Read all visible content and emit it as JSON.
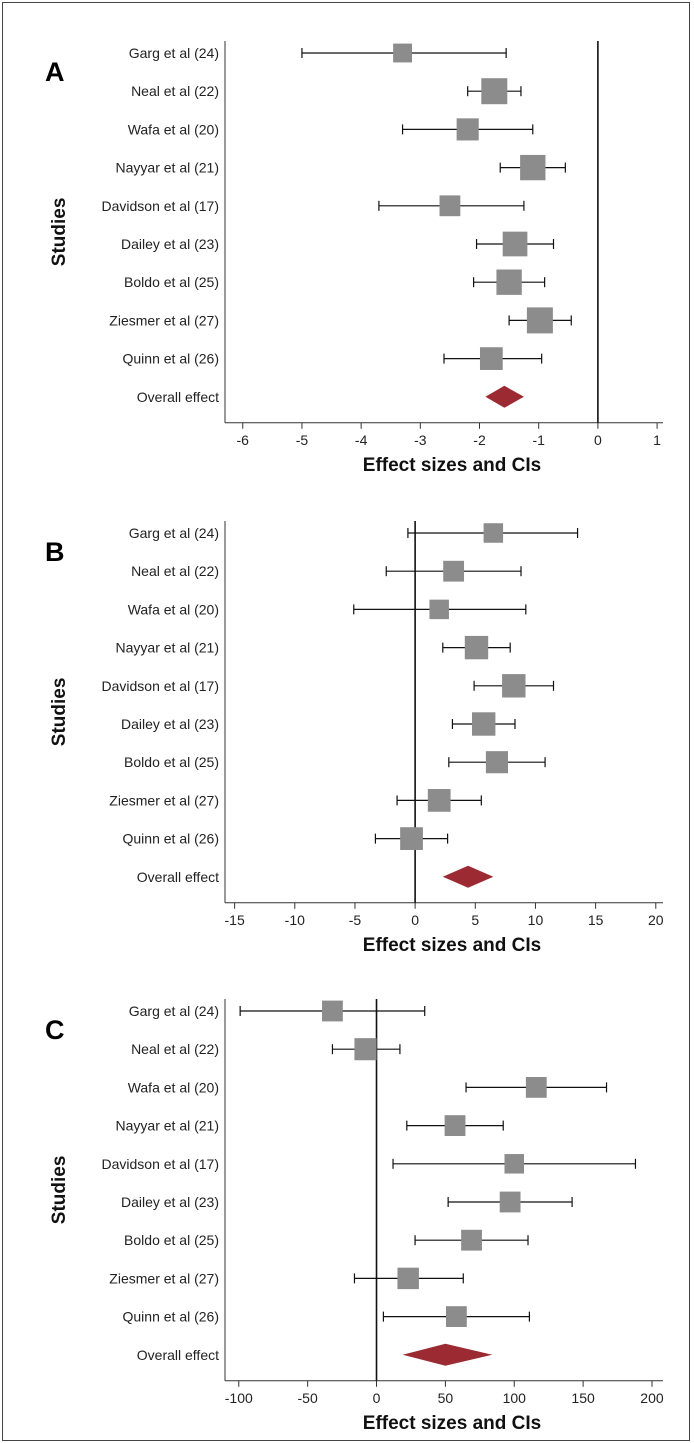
{
  "chart_data": [
    {
      "type": "forest",
      "panel_label": "A",
      "xlabel": "Effect sizes and CIs",
      "ylabel": "Studies",
      "xlim": [
        -6.3,
        1.1
      ],
      "xticks": [
        -6,
        -5,
        -4,
        -3,
        -2,
        -1,
        0,
        1
      ],
      "reference_line": 0,
      "studies": [
        {
          "name": "Garg et al (24)",
          "estimate": -3.3,
          "ci_low": -5.0,
          "ci_high": -1.55,
          "weight": 0.45
        },
        {
          "name": "Neal et al (22)",
          "estimate": -1.75,
          "ci_low": -2.2,
          "ci_high": -1.3,
          "weight": 1.0
        },
        {
          "name": "Wafa et al (20)",
          "estimate": -2.2,
          "ci_low": -3.3,
          "ci_high": -1.1,
          "weight": 0.7
        },
        {
          "name": "Nayyar et al (21)",
          "estimate": -1.1,
          "ci_low": -1.65,
          "ci_high": -0.55,
          "weight": 0.95
        },
        {
          "name": "Davidson et al (17)",
          "estimate": -2.5,
          "ci_low": -3.7,
          "ci_high": -1.25,
          "weight": 0.6
        },
        {
          "name": "Dailey et al (23)",
          "estimate": -1.4,
          "ci_low": -2.05,
          "ci_high": -0.75,
          "weight": 0.9
        },
        {
          "name": "Boldo et al (25)",
          "estimate": -1.5,
          "ci_low": -2.1,
          "ci_high": -0.9,
          "weight": 0.95
        },
        {
          "name": "Ziesmer et al (27)",
          "estimate": -0.98,
          "ci_low": -1.5,
          "ci_high": -0.45,
          "weight": 1.0
        },
        {
          "name": "Quinn et al (26)",
          "estimate": -1.8,
          "ci_low": -2.6,
          "ci_high": -0.95,
          "weight": 0.75
        }
      ],
      "overall": {
        "name": "Overall effect",
        "estimate": -1.58,
        "ci_low": -1.9,
        "ci_high": -1.25
      }
    },
    {
      "type": "forest",
      "panel_label": "B",
      "xlabel": "Effect sizes and CIs",
      "ylabel": "Studies",
      "xlim": [
        -15.8,
        20.6
      ],
      "xticks": [
        -15,
        -10,
        -5,
        0,
        5,
        10,
        15,
        20
      ],
      "reference_line": 0,
      "studies": [
        {
          "name": "Garg et al (24)",
          "estimate": 6.5,
          "ci_low": -0.6,
          "ci_high": 13.5,
          "weight": 0.5
        },
        {
          "name": "Neal et al (22)",
          "estimate": 3.2,
          "ci_low": -2.4,
          "ci_high": 8.8,
          "weight": 0.6
        },
        {
          "name": "Wafa et al (20)",
          "estimate": 2.0,
          "ci_low": -5.1,
          "ci_high": 9.2,
          "weight": 0.5
        },
        {
          "name": "Nayyar et al (21)",
          "estimate": 5.1,
          "ci_low": 2.3,
          "ci_high": 7.9,
          "weight": 0.8
        },
        {
          "name": "Davidson et al (17)",
          "estimate": 8.2,
          "ci_low": 4.9,
          "ci_high": 11.5,
          "weight": 0.8
        },
        {
          "name": "Dailey et al (23)",
          "estimate": 5.7,
          "ci_low": 3.1,
          "ci_high": 8.3,
          "weight": 0.8
        },
        {
          "name": "Boldo et al (25)",
          "estimate": 6.8,
          "ci_low": 2.8,
          "ci_high": 10.8,
          "weight": 0.7
        },
        {
          "name": "Ziesmer et al (27)",
          "estimate": 2.0,
          "ci_low": -1.5,
          "ci_high": 5.5,
          "weight": 0.75
        },
        {
          "name": "Quinn et al (26)",
          "estimate": -0.3,
          "ci_low": -3.3,
          "ci_high": 2.7,
          "weight": 0.75
        }
      ],
      "overall": {
        "name": "Overall effect",
        "estimate": 4.4,
        "ci_low": 2.3,
        "ci_high": 6.5
      }
    },
    {
      "type": "forest",
      "panel_label": "C",
      "xlabel": "Effect sizes and CIs",
      "ylabel": "Studies",
      "xlim": [
        -110,
        208
      ],
      "xticks": [
        -100,
        -50,
        0,
        50,
        100,
        150,
        200
      ],
      "reference_line": 0,
      "studies": [
        {
          "name": "Garg et al (24)",
          "estimate": -32,
          "ci_low": -99,
          "ci_high": 35,
          "weight": 0.6
        },
        {
          "name": "Neal et al (22)",
          "estimate": -8,
          "ci_low": -32,
          "ci_high": 17,
          "weight": 0.7
        },
        {
          "name": "Wafa et al (20)",
          "estimate": 116,
          "ci_low": 65,
          "ci_high": 167,
          "weight": 0.6
        },
        {
          "name": "Nayyar et al (21)",
          "estimate": 57,
          "ci_low": 22,
          "ci_high": 92,
          "weight": 0.6
        },
        {
          "name": "Davidson et al (17)",
          "estimate": 100,
          "ci_low": 12,
          "ci_high": 188,
          "weight": 0.5
        },
        {
          "name": "Dailey et al (23)",
          "estimate": 97,
          "ci_low": 52,
          "ci_high": 142,
          "weight": 0.6
        },
        {
          "name": "Boldo et al (25)",
          "estimate": 69,
          "ci_low": 28,
          "ci_high": 110,
          "weight": 0.6
        },
        {
          "name": "Ziesmer et al (27)",
          "estimate": 23,
          "ci_low": -16,
          "ci_high": 63,
          "weight": 0.65
        },
        {
          "name": "Quinn et al (26)",
          "estimate": 58,
          "ci_low": 5,
          "ci_high": 111,
          "weight": 0.6
        }
      ],
      "overall": {
        "name": "Overall effect",
        "estimate": 50,
        "ci_low": 19,
        "ci_high": 84
      }
    }
  ],
  "colors": {
    "marker": "#8c8c8c",
    "diamond": "#9c2a32",
    "line": "#111111",
    "axis": "#333333"
  }
}
